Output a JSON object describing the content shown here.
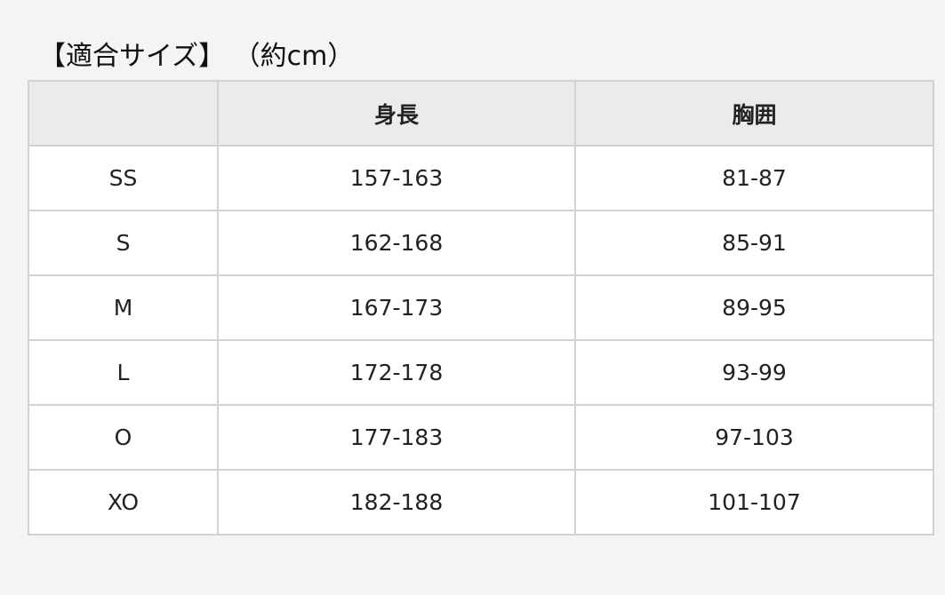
{
  "title": "【適合サイズ】 （約cm）",
  "table": {
    "headers": [
      "",
      "身長",
      "胸囲"
    ],
    "rows": [
      [
        "SS",
        "157-163",
        "81-87"
      ],
      [
        "S",
        "162-168",
        "85-91"
      ],
      [
        "M",
        "167-173",
        "89-95"
      ],
      [
        "L",
        "172-178",
        "93-99"
      ],
      [
        "O",
        "177-183",
        "97-103"
      ],
      [
        "XO",
        "182-188",
        "101-107"
      ]
    ]
  }
}
